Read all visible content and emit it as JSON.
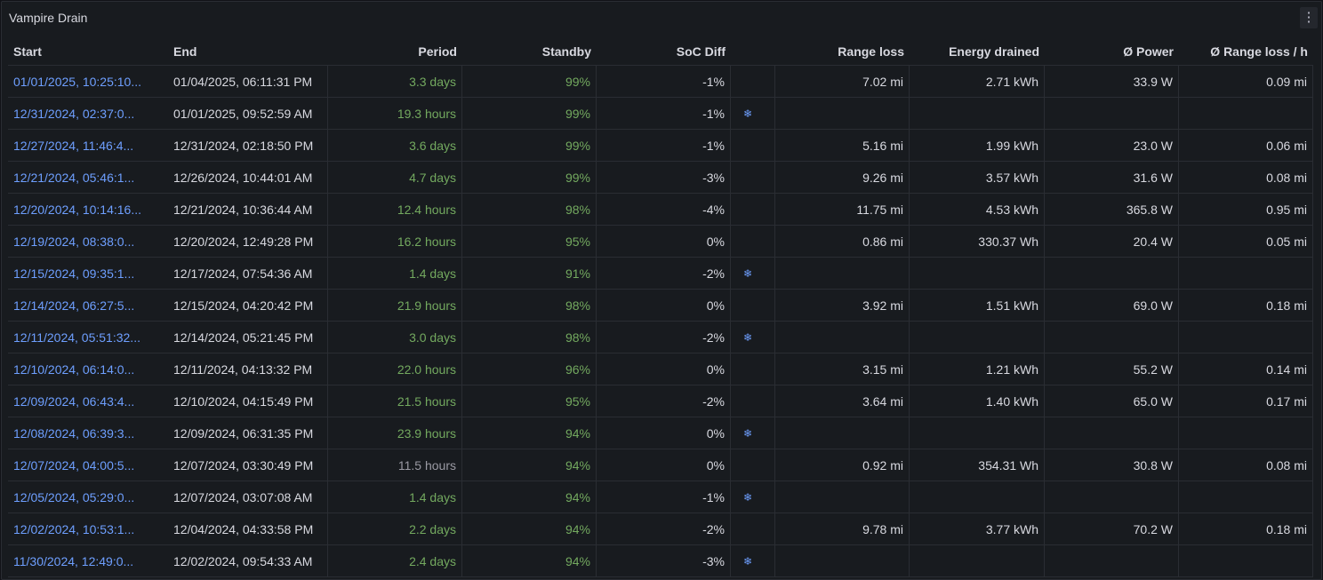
{
  "panel": {
    "title": "Vampire Drain",
    "menu": "⋮"
  },
  "table": {
    "headers": [
      "Start",
      "End",
      "Period",
      "Standby",
      "SoC Diff",
      null,
      "Range loss",
      "Energy drained",
      "Ø Power",
      "Ø Range loss / h"
    ],
    "period_colors": [
      "#73a95f",
      "#73a95f",
      "#73a95f",
      "#73a95f",
      "#73a95f",
      "#73a95f",
      "#73a95f",
      "#73a95f",
      "#73a95f",
      "#73a95f",
      "#73a95f",
      "#73a95f",
      "#9a9aa3",
      "#73a95f",
      "#73a95f",
      "#73a95f"
    ],
    "rows": [
      [
        "01/01/2025, 10:25:10...",
        "01/04/2025, 06:11:31 PM",
        "3.3 days",
        "99%",
        "-1%",
        null,
        "7.02 mi",
        "2.71 kWh",
        "33.9 W",
        "0.09 mi"
      ],
      [
        "12/31/2024, 02:37:0...",
        "01/01/2025, 09:52:59 AM",
        "19.3 hours",
        "99%",
        "-1%",
        "❄",
        null,
        null,
        null,
        null
      ],
      [
        "12/27/2024, 11:46:4...",
        "12/31/2024, 02:18:50 PM",
        "3.6 days",
        "99%",
        "-1%",
        null,
        "5.16 mi",
        "1.99 kWh",
        "23.0 W",
        "0.06 mi"
      ],
      [
        "12/21/2024, 05:46:1...",
        "12/26/2024, 10:44:01 AM",
        "4.7 days",
        "99%",
        "-3%",
        null,
        "9.26 mi",
        "3.57 kWh",
        "31.6 W",
        "0.08 mi"
      ],
      [
        "12/20/2024, 10:14:16...",
        "12/21/2024, 10:36:44 AM",
        "12.4 hours",
        "98%",
        "-4%",
        null,
        "11.75 mi",
        "4.53 kWh",
        "365.8 W",
        "0.95 mi"
      ],
      [
        "12/19/2024, 08:38:0...",
        "12/20/2024, 12:49:28 PM",
        "16.2 hours",
        "95%",
        "0%",
        null,
        "0.86 mi",
        "330.37 Wh",
        "20.4 W",
        "0.05 mi"
      ],
      [
        "12/15/2024, 09:35:1...",
        "12/17/2024, 07:54:36 AM",
        "1.4 days",
        "91%",
        "-2%",
        "❄",
        null,
        null,
        null,
        null
      ],
      [
        "12/14/2024, 06:27:5...",
        "12/15/2024, 04:20:42 PM",
        "21.9 hours",
        "98%",
        "0%",
        null,
        "3.92 mi",
        "1.51 kWh",
        "69.0 W",
        "0.18 mi"
      ],
      [
        "12/11/2024, 05:51:32...",
        "12/14/2024, 05:21:45 PM",
        "3.0 days",
        "98%",
        "-2%",
        "❄",
        null,
        null,
        null,
        null
      ],
      [
        "12/10/2024, 06:14:0...",
        "12/11/2024, 04:13:32 PM",
        "22.0 hours",
        "96%",
        "0%",
        null,
        "3.15 mi",
        "1.21 kWh",
        "55.2 W",
        "0.14 mi"
      ],
      [
        "12/09/2024, 06:43:4...",
        "12/10/2024, 04:15:49 PM",
        "21.5 hours",
        "95%",
        "-2%",
        null,
        "3.64 mi",
        "1.40 kWh",
        "65.0 W",
        "0.17 mi"
      ],
      [
        "12/08/2024, 06:39:3...",
        "12/09/2024, 06:31:35 PM",
        "23.9 hours",
        "94%",
        "0%",
        "❄",
        null,
        null,
        null,
        null
      ],
      [
        "12/07/2024, 04:00:5...",
        "12/07/2024, 03:30:49 PM",
        "11.5 hours",
        "94%",
        "0%",
        null,
        "0.92 mi",
        "354.31 Wh",
        "30.8 W",
        "0.08 mi"
      ],
      [
        "12/05/2024, 05:29:0...",
        "12/07/2024, 03:07:08 AM",
        "1.4 days",
        "94%",
        "-1%",
        "❄",
        null,
        null,
        null,
        null
      ],
      [
        "12/02/2024, 10:53:1...",
        "12/04/2024, 04:33:58 PM",
        "2.2 days",
        "94%",
        "-2%",
        null,
        "9.78 mi",
        "3.77 kWh",
        "70.2 W",
        "0.18 mi"
      ],
      [
        "11/30/2024, 12:49:0...",
        "12/02/2024, 09:54:33 AM",
        "2.4 days",
        "94%",
        "-3%",
        "❄",
        null,
        null,
        null,
        null
      ]
    ]
  }
}
